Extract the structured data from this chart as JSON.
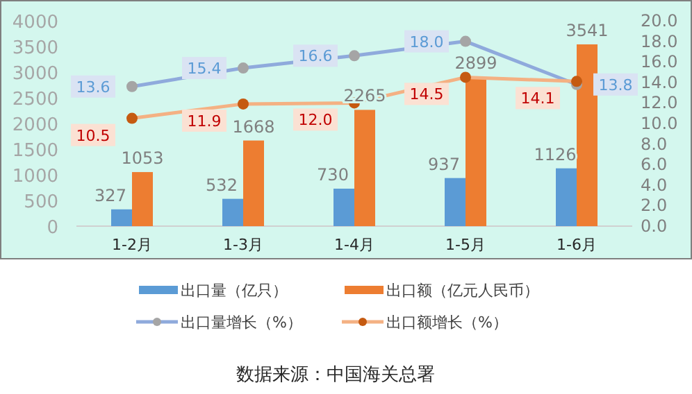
{
  "chart_data": {
    "type": "bar",
    "categories": [
      "1-2月",
      "1-3月",
      "1-4月",
      "1-5月",
      "1-6月"
    ],
    "series": [
      {
        "name": "出口量（亿只）",
        "color": "#5b9bd5",
        "values": [
          327,
          532,
          730,
          937,
          1126
        ],
        "value_labels": [
          "327",
          "532",
          "730",
          "937",
          "1126"
        ]
      },
      {
        "name": "出口额（亿元人民币）",
        "color": "#ed7d31",
        "values": [
          1053,
          1668,
          2265,
          2899,
          3541
        ],
        "value_labels": [
          "1053",
          "1668",
          "2265",
          "2899",
          "3541"
        ]
      },
      {
        "name": "出口量增长（%）",
        "type": "line",
        "axis": "y2",
        "color": "#8faadc",
        "values": [
          13.6,
          15.4,
          16.6,
          18.0,
          13.8
        ],
        "value_labels": [
          "13.6",
          "15.4",
          "16.6",
          "18.0",
          "13.8"
        ]
      },
      {
        "name": "出口额增长（%）",
        "type": "line",
        "axis": "y2",
        "color": "#f4b183",
        "values": [
          10.5,
          11.9,
          12.0,
          14.5,
          14.1
        ],
        "value_labels": [
          "10.5",
          "11.9",
          "12.0",
          "14.5",
          "14.1"
        ]
      }
    ],
    "ylim": [
      0,
      4000
    ],
    "yticks": [
      0,
      500,
      1000,
      1500,
      2000,
      2500,
      3000,
      3500,
      4000
    ],
    "y2lim": [
      0,
      20
    ],
    "y2ticks": [
      {
        "value": 0,
        "label": "0.0"
      },
      {
        "value": 2,
        "label": "2.0"
      },
      {
        "value": 4,
        "label": "4.0"
      },
      {
        "value": 6,
        "label": "6.0"
      },
      {
        "value": 8,
        "label": "8.0"
      },
      {
        "value": 10,
        "label": "10.0"
      },
      {
        "value": 12,
        "label": "12.0"
      },
      {
        "value": 14,
        "label": "14.0"
      },
      {
        "value": 16,
        "label": "16.0"
      },
      {
        "value": 18,
        "label": "18.0"
      },
      {
        "value": 20,
        "label": "20.0"
      }
    ],
    "marker": "circle",
    "legend": "bottom",
    "annotations": [
      "数据来源：中国海关总署"
    ]
  }
}
